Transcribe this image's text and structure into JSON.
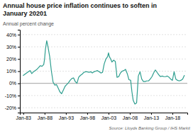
{
  "chart_data": {
    "type": "line",
    "title": [
      "Annual house price inflation continues to soften in",
      "January 20201"
    ],
    "y_label": "Annual percent change",
    "source": "Source: Lloyds Banking Group / IHS Markit",
    "color": "#2E9E8F",
    "grid": true,
    "xlim": [
      1982.2,
      2021.5
    ],
    "xticks": [
      {
        "value": 1983,
        "label": "Jan-83"
      },
      {
        "value": 1988,
        "label": "Jan-88"
      },
      {
        "value": 1993,
        "label": "Jan-93"
      },
      {
        "value": 1998,
        "label": "Jan-98"
      },
      {
        "value": 2003,
        "label": "Jan-03"
      },
      {
        "value": 2008,
        "label": "Jan-08"
      },
      {
        "value": 2013,
        "label": "Jan-13"
      },
      {
        "value": 2018,
        "label": "Jan-18"
      }
    ],
    "ylim": [
      -24,
      44
    ],
    "yticks": [
      {
        "value": -20,
        "label": "-20%"
      },
      {
        "value": -10,
        "label": "-10%"
      },
      {
        "value": 0,
        "label": "0%"
      },
      {
        "value": 10,
        "label": "10%"
      },
      {
        "value": 20,
        "label": "20%"
      },
      {
        "value": 30,
        "label": "30%"
      },
      {
        "value": 40,
        "label": "40%"
      }
    ],
    "x": [
      1983.0,
      1983.4,
      1983.8,
      1984.2,
      1984.6,
      1985.0,
      1985.4,
      1985.8,
      1986.2,
      1986.6,
      1987.0,
      1987.4,
      1987.8,
      1988.0,
      1988.2,
      1988.5,
      1988.8,
      1989.2,
      1989.6,
      1990.0,
      1990.4,
      1990.8,
      1991.2,
      1991.6,
      1992.0,
      1992.4,
      1992.8,
      1993.2,
      1993.6,
      1994.0,
      1994.4,
      1994.8,
      1995.2,
      1995.6,
      1996.0,
      1996.4,
      1996.8,
      1997.2,
      1997.6,
      1998.0,
      1998.4,
      1998.8,
      1999.2,
      1999.6,
      2000.0,
      2000.4,
      2000.8,
      2001.2,
      2001.6,
      2002.0,
      2002.4,
      2002.8,
      2003.0,
      2003.2,
      2003.5,
      2003.8,
      2004.2,
      2004.6,
      2005.0,
      2005.4,
      2005.8,
      2006.2,
      2006.6,
      2007.0,
      2007.4,
      2007.8,
      2008.2,
      2008.5,
      2008.8,
      2009.2,
      2009.6,
      2010.0,
      2010.4,
      2010.8,
      2011.2,
      2011.6,
      2012.0,
      2012.4,
      2012.8,
      2013.2,
      2013.6,
      2014.0,
      2014.4,
      2014.8,
      2015.2,
      2015.6,
      2016.0,
      2016.4,
      2016.8,
      2017.2,
      2017.6,
      2018.0,
      2018.4,
      2018.8,
      2019.2,
      2019.6,
      2020.0,
      2020.4,
      2020.8
    ],
    "values": [
      6.5,
      7.5,
      8.5,
      9.5,
      10.5,
      8.0,
      9.5,
      10.5,
      11.5,
      13.0,
      14.5,
      14.0,
      15.5,
      20.0,
      28.0,
      35.0,
      30.0,
      22.0,
      10.0,
      1.0,
      -1.5,
      -1.0,
      -4.0,
      -7.0,
      -8.5,
      -5.5,
      -2.5,
      -1.0,
      0.5,
      2.5,
      4.0,
      4.5,
      1.5,
      0.0,
      5.0,
      6.5,
      7.5,
      9.0,
      9.5,
      9.5,
      9.0,
      9.5,
      8.5,
      9.5,
      10.0,
      10.5,
      9.5,
      8.5,
      9.0,
      16.0,
      20.0,
      22.0,
      25.0,
      22.0,
      20.0,
      17.5,
      19.0,
      18.0,
      5.0,
      5.5,
      8.5,
      10.0,
      10.5,
      11.5,
      8.0,
      3.0,
      2.5,
      -7.0,
      -14.0,
      -17.0,
      -16.0,
      6.0,
      9.5,
      3.5,
      1.5,
      1.5,
      2.0,
      2.0,
      3.5,
      5.5,
      8.5,
      11.0,
      9.0,
      7.0,
      5.5,
      6.0,
      5.5,
      5.5,
      6.0,
      5.0,
      3.5,
      2.5,
      9.5,
      3.5,
      2.5,
      2.0,
      2.5,
      3.5,
      6.5
    ]
  }
}
